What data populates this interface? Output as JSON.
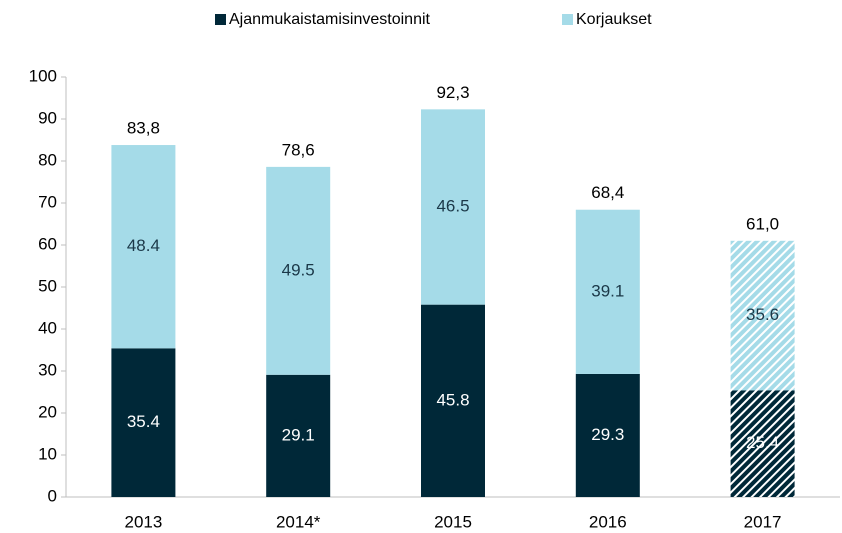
{
  "chart_data": {
    "type": "stacked_bar",
    "categories": [
      "2013",
      "2014*",
      "2015",
      "2016",
      "2017"
    ],
    "series": [
      {
        "name": "Ajanmukaistamisinvestoinnit",
        "color": "#002838",
        "values": [
          35.4,
          29.1,
          45.8,
          29.3,
          25.4
        ]
      },
      {
        "name": "Korjaukset",
        "color": "#a5dbe8",
        "values": [
          48.4,
          49.5,
          46.5,
          39.1,
          35.6
        ]
      }
    ],
    "totals": [
      83.8,
      78.6,
      92.3,
      68.4,
      61.0
    ],
    "total_labels": [
      "83,8",
      "78,6",
      "92,3",
      "68,4",
      "61,0"
    ],
    "hatched": [
      false,
      false,
      false,
      false,
      true
    ],
    "ylim": [
      0,
      100
    ],
    "yticks": [
      0,
      10,
      20,
      30,
      40,
      50,
      60,
      70,
      80,
      90,
      100
    ],
    "legend": "top",
    "grid": false
  }
}
